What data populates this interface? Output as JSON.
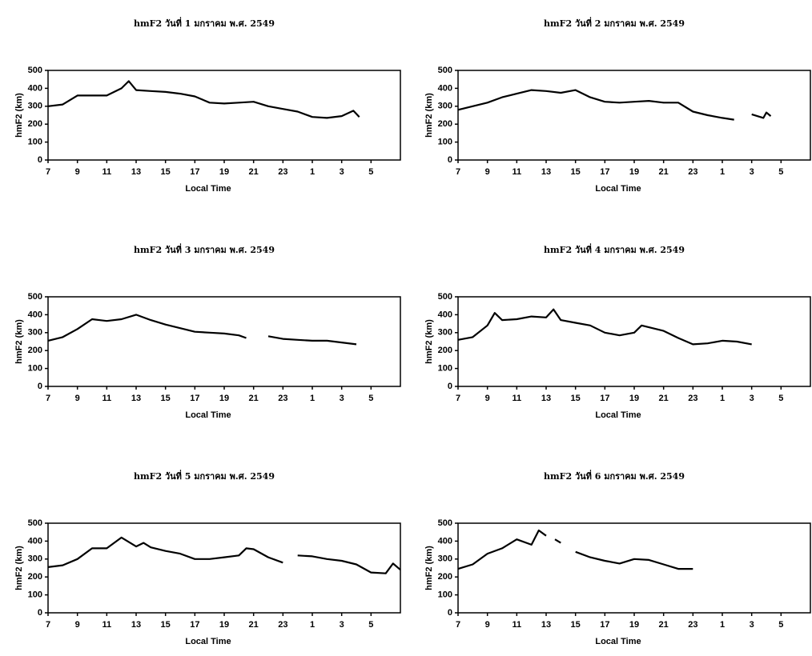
{
  "chart_data": [
    {
      "type": "line",
      "title": "hmF2 วันที่ 1 มกราคม พ.ศ. 2549",
      "x_label": "Local Time",
      "y_label": "hmF2 (km)",
      "xlim": [
        7,
        31
      ],
      "ylim": [
        0,
        500
      ],
      "xticks": [
        7,
        9,
        11,
        13,
        15,
        17,
        19,
        21,
        23,
        {
          "value": 25,
          "label": "1"
        },
        {
          "value": 27,
          "label": "3"
        },
        {
          "value": 29,
          "label": "5"
        }
      ],
      "yticks": [
        0,
        100,
        200,
        300,
        400,
        500
      ],
      "x": [
        7,
        8,
        9,
        10,
        11,
        12,
        12.5,
        13,
        14,
        15,
        16,
        17,
        18,
        19,
        20,
        21,
        22,
        23,
        24,
        25,
        26,
        27,
        27.8,
        28.2
      ],
      "series": [
        {
          "color": "#000000",
          "values": [
            300,
            310,
            360,
            360,
            360,
            400,
            440,
            390,
            385,
            380,
            370,
            355,
            320,
            315,
            320,
            325,
            300,
            285,
            270,
            240,
            235,
            245,
            275,
            240
          ]
        }
      ]
    },
    {
      "type": "line",
      "title": "hmF2 วันที่ 2 มกราคม พ.ศ. 2549",
      "x_label": "Local Time",
      "y_label": "hmF2 (km)",
      "xlim": [
        7,
        31
      ],
      "ylim": [
        0,
        500
      ],
      "xticks": [
        7,
        9,
        11,
        13,
        15,
        17,
        19,
        21,
        23,
        {
          "value": 25,
          "label": "1"
        },
        {
          "value": 27,
          "label": "3"
        },
        {
          "value": 29,
          "label": "5"
        }
      ],
      "yticks": [
        0,
        100,
        200,
        300,
        400,
        500
      ],
      "x": [
        7,
        8,
        9,
        10,
        11,
        12,
        13,
        14,
        15,
        16,
        17,
        18,
        19,
        20,
        21,
        22,
        23,
        24,
        25,
        25.8,
        26.5,
        27,
        27.8,
        28,
        28.3
      ],
      "series": [
        {
          "color": "#000000",
          "values": [
            280,
            300,
            320,
            350,
            370,
            390,
            385,
            375,
            390,
            350,
            325,
            320,
            325,
            330,
            320,
            320,
            270,
            250,
            235,
            225,
            null,
            255,
            235,
            265,
            245
          ]
        }
      ]
    },
    {
      "type": "line",
      "title": "hmF2 วันที่ 3 มกราคม พ.ศ. 2549",
      "x_label": "Local Time",
      "y_label": "hmF2 (km)",
      "xlim": [
        7,
        31
      ],
      "ylim": [
        0,
        500
      ],
      "xticks": [
        7,
        9,
        11,
        13,
        15,
        17,
        19,
        21,
        23,
        {
          "value": 25,
          "label": "1"
        },
        {
          "value": 27,
          "label": "3"
        },
        {
          "value": 29,
          "label": "5"
        }
      ],
      "yticks": [
        0,
        100,
        200,
        300,
        400,
        500
      ],
      "x": [
        7,
        8,
        9,
        10,
        11,
        12,
        13,
        14,
        15,
        16,
        17,
        18,
        19,
        20,
        20.5,
        21.2,
        22,
        23,
        24,
        25,
        26,
        27,
        28
      ],
      "series": [
        {
          "color": "#000000",
          "values": [
            255,
            275,
            320,
            375,
            365,
            375,
            400,
            370,
            345,
            325,
            305,
            300,
            295,
            285,
            270,
            null,
            280,
            265,
            260,
            255,
            255,
            245,
            235
          ]
        }
      ]
    },
    {
      "type": "line",
      "title": "hmF2 วันที่ 4 มกราคม พ.ศ. 2549",
      "x_label": "Local Time",
      "y_label": "hmF2 (km)",
      "xlim": [
        7,
        31
      ],
      "ylim": [
        0,
        500
      ],
      "xticks": [
        7,
        9,
        11,
        13,
        15,
        17,
        19,
        21,
        23,
        {
          "value": 25,
          "label": "1"
        },
        {
          "value": 27,
          "label": "3"
        },
        {
          "value": 29,
          "label": "5"
        }
      ],
      "yticks": [
        0,
        100,
        200,
        300,
        400,
        500
      ],
      "x": [
        7,
        8,
        9,
        9.5,
        10,
        11,
        12,
        13,
        13.5,
        14,
        15,
        16,
        17,
        18,
        19,
        19.5,
        20,
        21,
        22,
        23,
        24,
        25,
        26,
        27
      ],
      "series": [
        {
          "color": "#000000",
          "values": [
            260,
            275,
            340,
            410,
            370,
            375,
            390,
            385,
            430,
            370,
            355,
            340,
            300,
            285,
            300,
            340,
            330,
            310,
            270,
            235,
            240,
            255,
            250,
            235
          ]
        }
      ]
    },
    {
      "type": "line",
      "title": "hmF2 วันที่ 5 มกราคม พ.ศ. 2549",
      "x_label": "Local Time",
      "y_label": "hmF2 (km)",
      "xlim": [
        7,
        31
      ],
      "ylim": [
        0,
        500
      ],
      "xticks": [
        7,
        9,
        11,
        13,
        15,
        17,
        19,
        21,
        23,
        {
          "value": 25,
          "label": "1"
        },
        {
          "value": 27,
          "label": "3"
        },
        {
          "value": 29,
          "label": "5"
        }
      ],
      "yticks": [
        0,
        100,
        200,
        300,
        400,
        500
      ],
      "x": [
        7,
        8,
        9,
        10,
        11,
        12,
        13,
        13.5,
        14,
        15,
        16,
        17,
        18,
        19,
        20,
        20.5,
        21,
        22,
        23,
        23.5,
        24,
        25,
        26,
        27,
        28,
        29,
        30,
        30.5,
        31
      ],
      "series": [
        {
          "color": "#000000",
          "values": [
            255,
            265,
            300,
            360,
            360,
            420,
            370,
            390,
            365,
            345,
            330,
            300,
            300,
            310,
            320,
            360,
            355,
            310,
            280,
            null,
            320,
            315,
            300,
            290,
            270,
            225,
            220,
            275,
            240
          ]
        }
      ]
    },
    {
      "type": "line",
      "title": "hmF2 วันที่ 6 มกราคม พ.ศ. 2549",
      "x_label": "Local Time",
      "y_label": "hmF2 (km)",
      "xlim": [
        7,
        31
      ],
      "ylim": [
        0,
        500
      ],
      "xticks": [
        7,
        9,
        11,
        13,
        15,
        17,
        19,
        21,
        23,
        {
          "value": 25,
          "label": "1"
        },
        {
          "value": 27,
          "label": "3"
        },
        {
          "value": 29,
          "label": "5"
        }
      ],
      "yticks": [
        0,
        100,
        200,
        300,
        400,
        500
      ],
      "x": [
        7,
        8,
        9,
        10,
        11,
        12,
        12.5,
        13,
        13.3,
        13.6,
        14,
        14.5,
        15,
        16,
        17,
        18,
        19,
        20,
        21,
        22,
        23
      ],
      "series": [
        {
          "color": "#000000",
          "values": [
            245,
            270,
            330,
            360,
            410,
            380,
            460,
            430,
            null,
            410,
            390,
            null,
            340,
            310,
            290,
            275,
            300,
            295,
            270,
            245,
            245
          ]
        }
      ]
    }
  ]
}
